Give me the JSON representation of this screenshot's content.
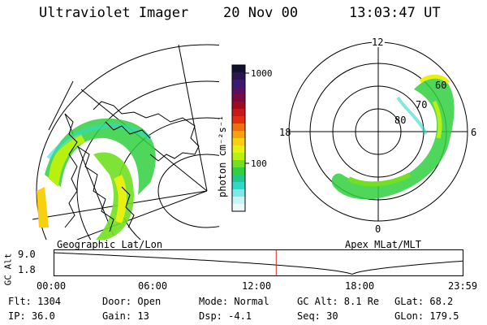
{
  "header": {
    "instrument": "Ultraviolet Imager",
    "date": "20 Nov 00",
    "time": "13:03:47 UT"
  },
  "colorbar": {
    "label": "photon cm⁻²s⁻¹",
    "ticks": [
      "1000",
      "100"
    ],
    "colors": [
      "#101030",
      "#2a1550",
      "#3a1a70",
      "#5a1060",
      "#7a0a40",
      "#a00a20",
      "#c81818",
      "#e03010",
      "#f07010",
      "#f8a010",
      "#f8d010",
      "#e8f010",
      "#b8f010",
      "#70e020",
      "#30d040",
      "#20c890",
      "#30d8c8",
      "#80e8e8",
      "#c8f4f4",
      "#eef8f8"
    ]
  },
  "left_map": {
    "title": "Geographic Lat/Lon"
  },
  "right_map": {
    "title": "Apex MLat/MLT",
    "mlt_labels": {
      "top": "12",
      "left": "18",
      "right": "6",
      "bottom": "0"
    },
    "lat_labels": [
      "60",
      "70",
      "80"
    ]
  },
  "timeline": {
    "ylabel": "GC Alt",
    "y_ticks": [
      "9.0",
      "1.8"
    ],
    "x_ticks": [
      "00:00",
      "06:00",
      "12:00",
      "18:00",
      "23:59"
    ],
    "marker_hour": 13.06,
    "marker_color": "#e02020"
  },
  "info": {
    "flt": "Flt: 1304",
    "ip": "IP: 36.0",
    "door": "Door: Open",
    "gain": "Gain: 13",
    "mode": "Mode: Normal",
    "dsp": "Dsp:   -4.1",
    "gcalt": "GC Alt: 8.1 Re",
    "seq": "Seq: 30",
    "glat": "GLat:  68.2",
    "glon": "GLon: 179.5"
  }
}
